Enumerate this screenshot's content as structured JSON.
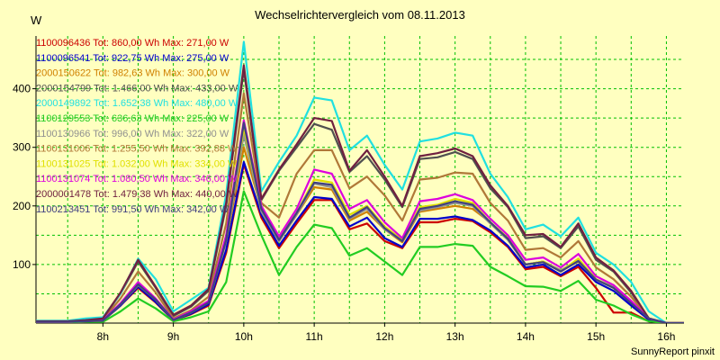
{
  "chart_data": {
    "type": "line",
    "title": "Wechselrichtervergleich vom 08.11.2013",
    "ylabel": "W",
    "xlabel": "",
    "credit": "SunnyReport pinxit",
    "x_ticks": [
      "8h",
      "9h",
      "10h",
      "11h",
      "12h",
      "13h",
      "14h",
      "15h",
      "16h"
    ],
    "y_ticks": [
      100,
      200,
      300,
      400
    ],
    "xlim": [
      7.05,
      16.25
    ],
    "ylim": [
      0,
      490
    ],
    "grid": true,
    "legend_position": "top-left",
    "x": [
      7.0,
      7.25,
      7.5,
      7.75,
      8.0,
      8.25,
      8.5,
      8.75,
      9.0,
      9.25,
      9.5,
      9.75,
      10.0,
      10.25,
      10.5,
      10.75,
      11.0,
      11.25,
      11.5,
      11.75,
      12.0,
      12.25,
      12.5,
      12.75,
      13.0,
      13.25,
      13.5,
      13.75,
      14.0,
      14.25,
      14.5,
      14.75,
      15.0,
      15.25,
      15.5,
      15.75,
      16.0,
      16.25
    ],
    "series": [
      {
        "name": "1100096436",
        "label": "1100096436 Tot: 860,00 Wh Max: 271,00 W",
        "color": "#cc0000",
        "values": [
          2,
          2,
          2,
          3,
          4,
          30,
          60,
          35,
          5,
          15,
          30,
          120,
          271,
          180,
          128,
          170,
          210,
          210,
          160,
          170,
          140,
          128,
          172,
          172,
          178,
          174,
          155,
          130,
          92,
          96,
          80,
          96,
          60,
          18,
          18,
          3,
          0,
          0
        ]
      },
      {
        "name": "1100096541",
        "label": "1100096541 Tot: 922,75 Wh Max: 275,00 W",
        "color": "#0000cc",
        "values": [
          2,
          2,
          2,
          3,
          4,
          30,
          62,
          36,
          5,
          16,
          32,
          125,
          275,
          185,
          132,
          175,
          215,
          212,
          165,
          180,
          145,
          130,
          178,
          178,
          182,
          176,
          158,
          132,
          95,
          100,
          82,
          100,
          70,
          55,
          30,
          6,
          0,
          0
        ]
      },
      {
        "name": "2000150622",
        "label": "2000150622 Tot: 982,63 Wh Max: 300,00 W",
        "color": "#d08000",
        "values": [
          2,
          2,
          2,
          3,
          4,
          32,
          65,
          40,
          5,
          18,
          35,
          140,
          300,
          195,
          140,
          185,
          232,
          228,
          175,
          190,
          160,
          138,
          190,
          195,
          200,
          195,
          172,
          145,
          100,
          105,
          90,
          105,
          75,
          60,
          35,
          8,
          0,
          0
        ]
      },
      {
        "name": "2000154799",
        "label": "2000154799 Tot: 1.466,00 Wh Max: 433,00 W",
        "color": "#505050",
        "values": [
          3,
          3,
          3,
          5,
          8,
          50,
          105,
          60,
          12,
          28,
          55,
          200,
          433,
          210,
          260,
          300,
          340,
          330,
          258,
          285,
          245,
          198,
          280,
          283,
          292,
          280,
          230,
          198,
          145,
          148,
          128,
          165,
          108,
          88,
          52,
          8,
          0,
          0
        ]
      },
      {
        "name": "2000149892",
        "label": "2000149892 Tot: 1.652,38 Wh Max: 480,00 W",
        "color": "#20e0e0",
        "values": [
          4,
          4,
          4,
          8,
          10,
          50,
          110,
          75,
          20,
          40,
          60,
          220,
          480,
          225,
          275,
          320,
          385,
          380,
          295,
          320,
          270,
          228,
          310,
          315,
          325,
          320,
          255,
          215,
          160,
          168,
          148,
          180,
          120,
          100,
          70,
          20,
          0,
          0
        ]
      },
      {
        "name": "1100129553",
        "label": "1100129553 Tot: 636,63 Wh Max: 225,00 W",
        "color": "#22cc22",
        "values": [
          1,
          1,
          1,
          2,
          2,
          20,
          42,
          25,
          3,
          10,
          20,
          70,
          225,
          150,
          82,
          130,
          168,
          162,
          115,
          128,
          105,
          82,
          130,
          130,
          135,
          132,
          96,
          80,
          63,
          62,
          55,
          72,
          40,
          30,
          15,
          3,
          0,
          0
        ]
      },
      {
        "name": "1100130966",
        "label": "1100130966 Tot: 996,00 Wh Max: 322,00 W",
        "color": "#909090",
        "values": [
          2,
          2,
          2,
          3,
          4,
          32,
          65,
          40,
          5,
          18,
          35,
          140,
          322,
          190,
          140,
          185,
          238,
          232,
          178,
          195,
          160,
          140,
          192,
          198,
          205,
          200,
          170,
          142,
          100,
          105,
          90,
          108,
          75,
          62,
          35,
          8,
          0,
          0
        ]
      },
      {
        "name": "1100131006",
        "label": "1100131006 Tot: 1.255,50 Wh Max: 392,88 W",
        "color": "#b07838",
        "values": [
          2,
          2,
          2,
          4,
          6,
          42,
          88,
          52,
          8,
          22,
          45,
          170,
          392,
          205,
          180,
          255,
          295,
          295,
          230,
          250,
          218,
          175,
          245,
          248,
          257,
          255,
          205,
          175,
          125,
          128,
          112,
          140,
          95,
          75,
          45,
          8,
          0,
          0
        ]
      },
      {
        "name": "1100131025",
        "label": "1100131025 Tot: 1.032,00 Wh Max: 334,00 W",
        "color": "#e0e000",
        "values": [
          2,
          2,
          2,
          3,
          4,
          33,
          66,
          40,
          5,
          18,
          36,
          145,
          334,
          195,
          145,
          188,
          245,
          240,
          185,
          200,
          165,
          142,
          198,
          202,
          212,
          205,
          172,
          145,
          100,
          105,
          88,
          110,
          75,
          60,
          35,
          8,
          0,
          0
        ]
      },
      {
        "name": "1100131074",
        "label": "1100131074 Tot: 1.080,50 Wh Max: 346,00 W",
        "color": "#dd00dd",
        "values": [
          2,
          2,
          2,
          3,
          5,
          34,
          70,
          42,
          6,
          20,
          38,
          150,
          346,
          200,
          148,
          195,
          262,
          255,
          195,
          210,
          172,
          145,
          208,
          212,
          220,
          210,
          178,
          150,
          108,
          112,
          95,
          118,
          80,
          65,
          38,
          8,
          0,
          0
        ]
      },
      {
        "name": "2000001478",
        "label": "2000001478 Tot: 1.479,38 Wh Max: 440,00 W",
        "color": "#702040",
        "values": [
          3,
          3,
          3,
          5,
          8,
          52,
          108,
          62,
          14,
          30,
          58,
          205,
          440,
          212,
          262,
          305,
          350,
          345,
          260,
          295,
          250,
          200,
          285,
          290,
          298,
          285,
          235,
          200,
          150,
          152,
          130,
          170,
          112,
          90,
          55,
          8,
          0,
          0
        ]
      },
      {
        "name": "1100213451",
        "label": "1100213451 Tot: 991,50 Wh Max: 342,00 W",
        "color": "#404080",
        "values": [
          2,
          2,
          2,
          3,
          4,
          32,
          66,
          40,
          5,
          18,
          35,
          142,
          342,
          195,
          142,
          188,
          240,
          236,
          180,
          198,
          162,
          140,
          195,
          200,
          208,
          202,
          172,
          144,
          100,
          104,
          88,
          106,
          74,
          60,
          34,
          8,
          0,
          0
        ]
      }
    ]
  }
}
